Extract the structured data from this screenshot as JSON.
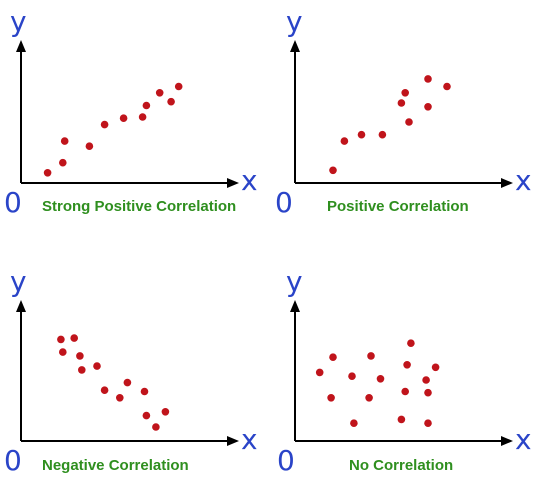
{
  "colors": {
    "axis_letters": "#2a44c8",
    "caption": "#2f8f1f",
    "points": "#c0141b",
    "axes": "#000000"
  },
  "chart_data": [
    {
      "type": "scatter",
      "title": "Strong Positive Correlation",
      "xlabel": "x",
      "ylabel": "y",
      "origin_label": "0",
      "xlim": [
        0,
        10
      ],
      "ylim": [
        0,
        10
      ],
      "grid": false,
      "points": [
        {
          "x": 1.4,
          "y": 0.8
        },
        {
          "x": 2.2,
          "y": 1.6
        },
        {
          "x": 2.3,
          "y": 3.3
        },
        {
          "x": 3.6,
          "y": 2.9
        },
        {
          "x": 4.4,
          "y": 4.6
        },
        {
          "x": 5.4,
          "y": 5.1
        },
        {
          "x": 6.4,
          "y": 5.2
        },
        {
          "x": 6.6,
          "y": 6.1
        },
        {
          "x": 7.3,
          "y": 7.1
        },
        {
          "x": 7.9,
          "y": 6.4
        },
        {
          "x": 8.3,
          "y": 7.6
        }
      ]
    },
    {
      "type": "scatter",
      "title": "Positive Correlation",
      "xlabel": "x",
      "ylabel": "y",
      "origin_label": "0",
      "xlim": [
        0,
        10
      ],
      "ylim": [
        0,
        10
      ],
      "grid": false,
      "points": [
        {
          "x": 2.0,
          "y": 1.0
        },
        {
          "x": 2.6,
          "y": 3.3
        },
        {
          "x": 3.5,
          "y": 3.8
        },
        {
          "x": 4.6,
          "y": 3.8
        },
        {
          "x": 5.6,
          "y": 6.3
        },
        {
          "x": 5.8,
          "y": 7.1
        },
        {
          "x": 6.0,
          "y": 4.8
        },
        {
          "x": 7.0,
          "y": 8.2
        },
        {
          "x": 7.0,
          "y": 6.0
        },
        {
          "x": 8.0,
          "y": 7.6
        }
      ]
    },
    {
      "type": "scatter",
      "title": "Negative Correlation",
      "xlabel": "x",
      "ylabel": "y",
      "origin_label": "0",
      "xlim": [
        0,
        10
      ],
      "ylim": [
        0,
        10
      ],
      "grid": false,
      "points": [
        {
          "x": 2.1,
          "y": 8.0
        },
        {
          "x": 2.2,
          "y": 7.0
        },
        {
          "x": 2.8,
          "y": 8.1
        },
        {
          "x": 3.1,
          "y": 6.7
        },
        {
          "x": 3.2,
          "y": 5.6
        },
        {
          "x": 4.0,
          "y": 5.9
        },
        {
          "x": 4.4,
          "y": 4.0
        },
        {
          "x": 5.2,
          "y": 3.4
        },
        {
          "x": 5.6,
          "y": 4.6
        },
        {
          "x": 6.5,
          "y": 3.9
        },
        {
          "x": 6.6,
          "y": 2.0
        },
        {
          "x": 7.1,
          "y": 1.1
        },
        {
          "x": 7.6,
          "y": 2.3
        }
      ]
    },
    {
      "type": "scatter",
      "title": "No Correlation",
      "xlabel": "x",
      "ylabel": "y",
      "origin_label": "0",
      "xlim": [
        0,
        10
      ],
      "ylim": [
        0,
        10
      ],
      "grid": false,
      "points": [
        {
          "x": 1.3,
          "y": 5.4
        },
        {
          "x": 1.9,
          "y": 3.4
        },
        {
          "x": 2.0,
          "y": 6.6
        },
        {
          "x": 3.0,
          "y": 5.1
        },
        {
          "x": 3.1,
          "y": 1.4
        },
        {
          "x": 3.9,
          "y": 3.4
        },
        {
          "x": 4.0,
          "y": 6.7
        },
        {
          "x": 4.5,
          "y": 4.9
        },
        {
          "x": 5.6,
          "y": 1.7
        },
        {
          "x": 5.8,
          "y": 3.9
        },
        {
          "x": 5.9,
          "y": 6.0
        },
        {
          "x": 6.1,
          "y": 7.7
        },
        {
          "x": 6.9,
          "y": 4.8
        },
        {
          "x": 7.0,
          "y": 3.8
        },
        {
          "x": 7.0,
          "y": 1.4
        },
        {
          "x": 7.4,
          "y": 5.8
        }
      ]
    }
  ]
}
